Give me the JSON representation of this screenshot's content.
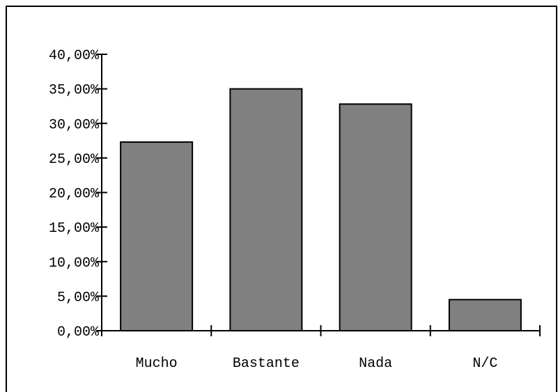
{
  "chart_data": {
    "type": "bar",
    "categories": [
      "Mucho",
      "Bastante",
      "Nada",
      "N/C"
    ],
    "values": [
      27.3,
      35.0,
      32.8,
      4.5
    ],
    "ylim": [
      0,
      40
    ],
    "yticks": [
      0,
      5,
      10,
      15,
      20,
      25,
      30,
      35,
      40
    ],
    "ytick_labels": [
      "0,00%",
      "5,00%",
      "10,00%",
      "15,00%",
      "20,00%",
      "25,00%",
      "30,00%",
      "35,00%",
      "40,00%"
    ],
    "grid": false,
    "legend": "none",
    "bar_color": "#808080",
    "bar_edge_color": "#000000",
    "title": "",
    "xlabel": "",
    "ylabel": ""
  }
}
